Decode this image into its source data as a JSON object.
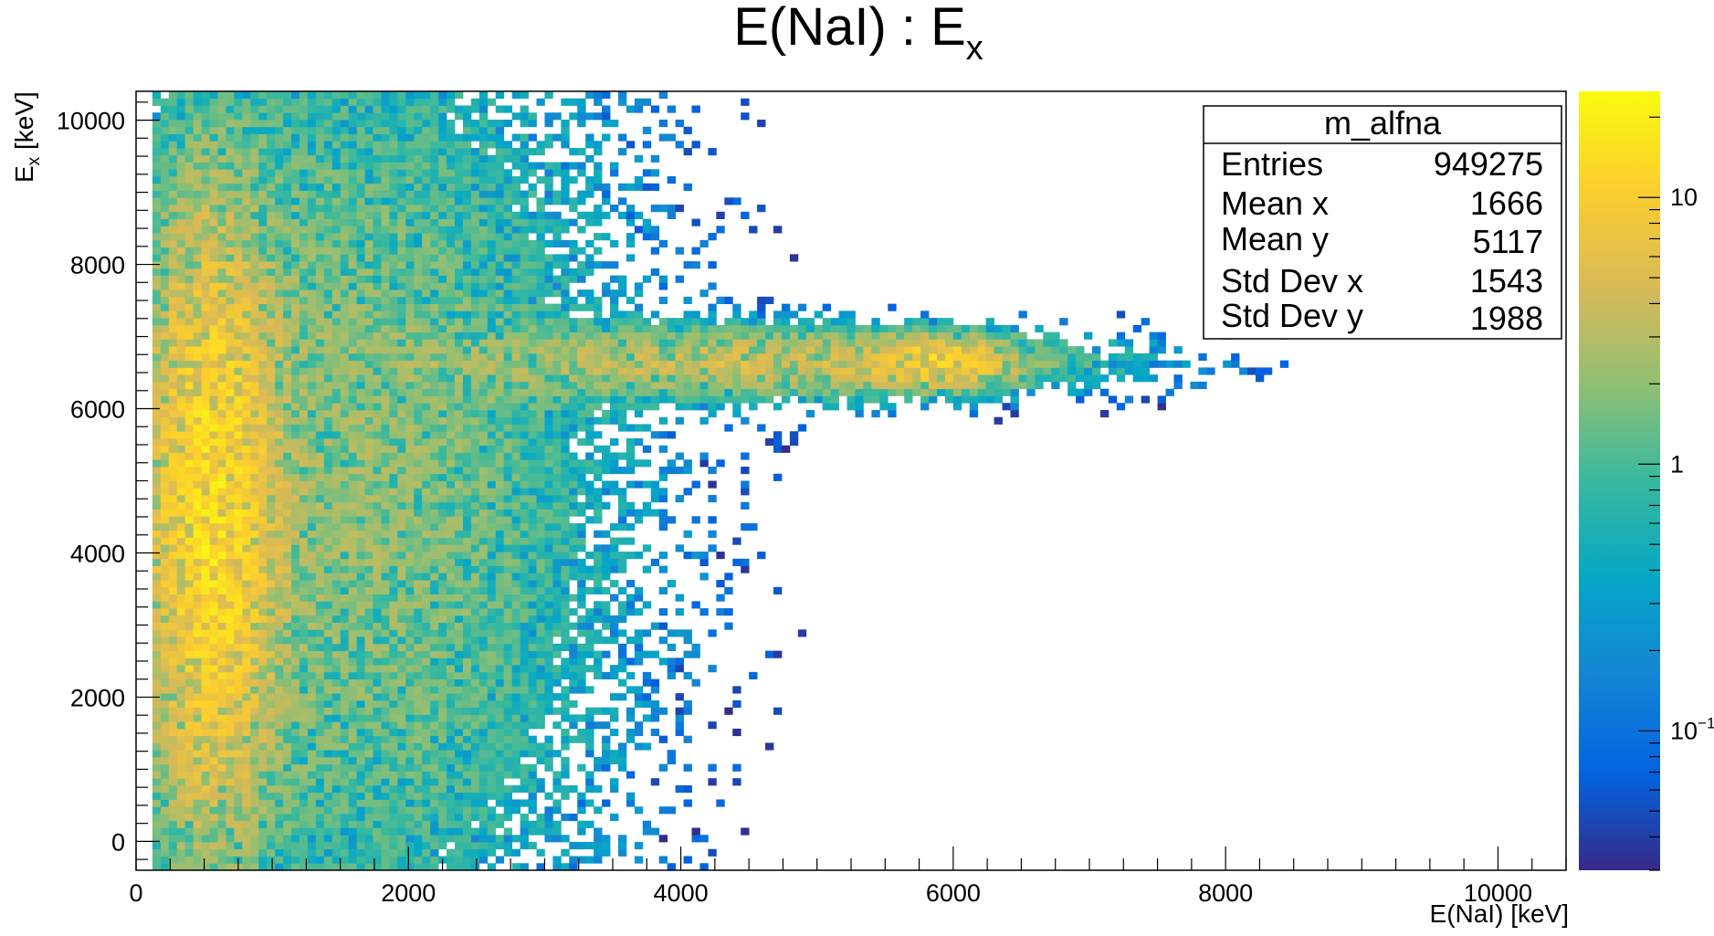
{
  "chart_data": {
    "type": "heatmap",
    "title": {
      "main": "E(NaI) : E",
      "sub": "x"
    },
    "xlabel": "E(NaI) [keV]",
    "ylabel": {
      "main": "E",
      "sub": "x",
      "unit": " [keV]"
    },
    "xlim": [
      0,
      10500
    ],
    "ylim": [
      -400,
      10400
    ],
    "x_ticks": [
      0,
      2000,
      4000,
      6000,
      8000,
      10000
    ],
    "x_tick_labels": [
      "0",
      "2000",
      "4000",
      "6000",
      "8000",
      "10000"
    ],
    "y_ticks": [
      0,
      2000,
      4000,
      6000,
      8000,
      10000
    ],
    "y_tick_labels": [
      "0",
      "2000",
      "4000",
      "6000",
      "8000",
      "10000"
    ],
    "z_scale": "log",
    "zlim": [
      0.03,
      25
    ],
    "z_ticks": [
      0.1,
      1,
      10
    ],
    "z_tick_labels": [
      {
        "base": "10",
        "exp": "−1"
      },
      {
        "base": "1",
        "exp": ""
      },
      {
        "base": "10",
        "exp": ""
      }
    ],
    "colormap": [
      "#352a87",
      "#0363e1",
      "#1485d4",
      "#06a7c6",
      "#38b99e",
      "#92bf73",
      "#d9ba56",
      "#fcce2e",
      "#f9fb0e"
    ],
    "density_features": [
      {
        "description": "dense band",
        "x_range": [
          200,
          900
        ],
        "y_range": [
          1500,
          7500
        ],
        "level": 12
      },
      {
        "description": "broad region",
        "x_range": [
          150,
          3000
        ],
        "y_range": [
          0,
          10000
        ],
        "level": 2
      },
      {
        "description": "horizontal band",
        "x_range": [
          3000,
          6300
        ],
        "y_range": [
          6300,
          7000
        ],
        "level": 4
      },
      {
        "description": "spot",
        "x_range": [
          5500,
          6300
        ],
        "y_range": [
          6400,
          6900
        ],
        "level": 8
      }
    ],
    "stats_box": {
      "name": "m_alfna",
      "rows": [
        {
          "label": "Entries",
          "value": "949275"
        },
        {
          "label": "Mean x",
          "value": "1666"
        },
        {
          "label": "Mean y",
          "value": "5117"
        },
        {
          "label": "Std Dev x",
          "value": "1543"
        },
        {
          "label": "Std Dev y",
          "value": "1988"
        }
      ]
    }
  }
}
